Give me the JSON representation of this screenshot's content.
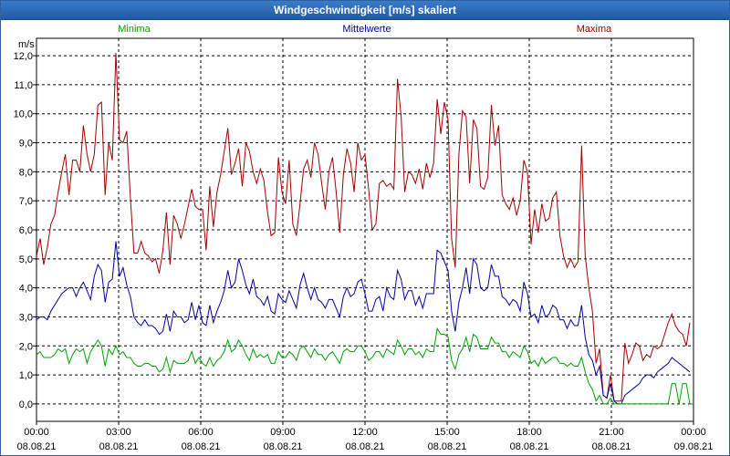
{
  "chart_data": {
    "type": "line",
    "title": "Windgeschwindigkeit [m/s] skaliert",
    "ylabel": "m/s",
    "ylim": [
      -0.6,
      12.6
    ],
    "yticks": [
      0,
      1,
      2,
      3,
      4,
      5,
      6,
      7,
      8,
      9,
      10,
      11,
      12
    ],
    "ytick_labels": [
      "0,0",
      "1,0",
      "2,0",
      "3,0",
      "4,0",
      "5,0",
      "6,0",
      "7,0",
      "8,0",
      "9,0",
      "10,0",
      "11,0",
      "12,0"
    ],
    "xlim_hours": [
      0,
      24
    ],
    "xticks": [
      {
        "h": 0,
        "time": "00:00",
        "date": "08.08.21"
      },
      {
        "h": 3,
        "time": "03:00",
        "date": "08.08.21"
      },
      {
        "h": 6,
        "time": "06:00",
        "date": "08.08.21"
      },
      {
        "h": 9,
        "time": "09:00",
        "date": "08.08.21"
      },
      {
        "h": 12,
        "time": "12:00",
        "date": "08.08.21"
      },
      {
        "h": 15,
        "time": "15:00",
        "date": "08.08.21"
      },
      {
        "h": 18,
        "time": "18:00",
        "date": "08.08.21"
      },
      {
        "h": 21,
        "time": "21:00",
        "date": "08.08.21"
      },
      {
        "h": 24,
        "time": "00:00",
        "date": "09.08.21"
      }
    ],
    "grid": true,
    "sample_interval_hours": 0.1667,
    "series": [
      {
        "name": "Maxima",
        "color": "#a00000",
        "values": [
          5.1,
          5.7,
          4.8,
          5.4,
          6.2,
          6.5,
          7.3,
          8.0,
          8.6,
          7.2,
          8.4,
          8.4,
          8.0,
          9.6,
          8.6,
          8.0,
          8.6,
          10.3,
          10.4,
          7.2,
          9.0,
          8.4,
          12.1,
          9.1,
          9.0,
          9.4,
          7.1,
          5.2,
          5.2,
          5.6,
          5.2,
          5.1,
          4.9,
          5.0,
          4.5,
          5.3,
          6.6,
          4.8,
          6.5,
          6.2,
          5.7,
          6.2,
          6.8,
          7.4,
          6.8,
          6.7,
          6.7,
          5.3,
          7.5,
          6.1,
          7.3,
          7.9,
          8.7,
          9.5,
          7.9,
          8.3,
          8.8,
          7.5,
          9.0,
          8.7,
          8.0,
          7.6,
          8.1,
          7.7,
          6.6,
          5.8,
          5.9,
          8.5,
          7.3,
          6.9,
          8.4,
          6.2,
          5.8,
          6.9,
          8.1,
          8.4,
          7.8,
          9.0,
          8.6,
          7.6,
          6.7,
          8.0,
          8.5,
          7.3,
          5.9,
          7.9,
          8.8,
          8.3,
          7.3,
          9.0,
          8.4,
          8.6,
          7.4,
          6.0,
          6.2,
          7.6,
          7.7,
          7.5,
          7.6,
          7.4,
          11.2,
          9.9,
          7.3,
          8.0,
          7.9,
          7.6,
          8.1,
          7.4,
          8.3,
          7.8,
          8.3,
          10.5,
          9.3,
          10.4,
          9.8,
          5.7,
          4.7,
          8.6,
          10.1,
          9.9,
          7.6,
          9.8,
          9.5,
          7.5,
          7.4,
          7.8,
          10.3,
          8.9,
          9.6,
          7.2,
          6.9,
          6.7,
          7.1,
          6.5,
          7.0,
          8.4,
          8.0,
          5.5,
          6.7,
          5.9,
          6.9,
          6.3,
          6.4,
          7.1,
          7.3,
          5.8,
          5.1,
          4.7,
          5.0,
          4.7,
          4.9,
          8.9,
          5.1,
          4.0,
          3.2,
          1.4,
          1.9,
          0.3,
          0.2,
          1.0,
          0.1,
          0.1,
          0.1,
          2.1,
          1.4,
          1.7,
          2.1,
          2.0,
          1.5,
          1.7,
          1.6,
          2.0,
          1.9,
          2.0,
          2.4,
          2.8,
          3.1,
          2.7,
          2.5,
          2.4,
          2.0,
          2.8
        ]
      },
      {
        "name": "Mittelwerte",
        "color": "#0000a0",
        "values": [
          2.9,
          3.0,
          3.0,
          2.9,
          3.2,
          3.4,
          3.6,
          3.8,
          3.9,
          4.0,
          4.0,
          3.7,
          4.0,
          4.2,
          3.9,
          3.6,
          4.4,
          4.8,
          4.6,
          3.5,
          4.2,
          4.3,
          5.6,
          4.4,
          4.7,
          4.1,
          3.7,
          3.0,
          2.8,
          2.7,
          2.9,
          2.7,
          2.7,
          2.6,
          2.4,
          2.5,
          3.1,
          2.5,
          3.2,
          3.0,
          3.0,
          2.8,
          2.9,
          3.5,
          2.9,
          3.4,
          2.8,
          2.7,
          3.4,
          2.8,
          3.2,
          3.5,
          3.9,
          4.6,
          4.0,
          4.2,
          5.0,
          4.6,
          4.1,
          3.8,
          4.3,
          3.7,
          3.6,
          3.4,
          3.7,
          3.2,
          3.1,
          3.8,
          3.6,
          3.5,
          3.9,
          3.6,
          3.3,
          4.1,
          4.5,
          4.0,
          3.6,
          4.0,
          3.6,
          3.5,
          3.3,
          3.6,
          3.6,
          3.3,
          3.0,
          3.7,
          4.0,
          3.7,
          3.8,
          4.2,
          4.3,
          3.8,
          3.2,
          3.2,
          3.6,
          3.7,
          3.2,
          4.0,
          3.7,
          3.6,
          4.6,
          4.3,
          3.6,
          3.9,
          3.9,
          3.4,
          3.7,
          3.3,
          3.8,
          3.8,
          3.8,
          5.3,
          5.2,
          4.9,
          4.6,
          3.2,
          2.5,
          3.5,
          4.0,
          4.7,
          3.8,
          5.0,
          4.8,
          4.0,
          3.9,
          4.0,
          4.8,
          4.4,
          4.4,
          3.7,
          3.6,
          3.4,
          3.6,
          3.5,
          3.2,
          4.2,
          3.8,
          3.0,
          3.1,
          2.8,
          3.4,
          3.0,
          3.1,
          3.4,
          3.3,
          2.9,
          2.9,
          2.6,
          2.9,
          2.7,
          2.7,
          3.4,
          2.3,
          1.7,
          1.5,
          1.0,
          1.3,
          0.3,
          0.2,
          0.7,
          0.1,
          0.0,
          0.0,
          0.3,
          0.4,
          0.5,
          0.6,
          0.7,
          0.9,
          1.0,
          1.0,
          0.9,
          1.1,
          1.2,
          1.3,
          1.4,
          1.6,
          1.5,
          1.4,
          1.3,
          1.2,
          1.1
        ]
      },
      {
        "name": "Minima",
        "color": "#00a000",
        "values": [
          1.7,
          1.8,
          1.6,
          1.6,
          1.6,
          1.7,
          1.9,
          1.8,
          1.9,
          1.4,
          1.7,
          1.9,
          1.8,
          1.9,
          1.4,
          1.8,
          2.0,
          2.2,
          2.0,
          1.3,
          1.9,
          1.7,
          2.0,
          1.7,
          1.8,
          1.6,
          1.6,
          1.4,
          1.3,
          1.3,
          1.4,
          1.4,
          1.3,
          1.3,
          1.1,
          1.2,
          1.6,
          1.1,
          1.5,
          1.4,
          1.4,
          1.4,
          1.5,
          1.8,
          1.4,
          1.6,
          1.4,
          1.3,
          1.6,
          1.3,
          1.5,
          1.6,
          1.8,
          2.2,
          1.8,
          1.9,
          2.2,
          2.0,
          1.7,
          1.5,
          1.9,
          1.6,
          1.7,
          1.6,
          1.7,
          1.4,
          1.4,
          1.8,
          1.6,
          1.6,
          1.8,
          1.7,
          1.5,
          1.9,
          2.0,
          1.8,
          1.6,
          1.9,
          1.7,
          1.7,
          1.5,
          1.7,
          1.8,
          1.6,
          1.4,
          1.8,
          1.9,
          1.8,
          1.8,
          2.0,
          2.0,
          1.8,
          1.5,
          1.6,
          1.8,
          1.8,
          1.6,
          1.9,
          1.8,
          1.7,
          2.2,
          2.0,
          1.7,
          1.9,
          1.9,
          1.7,
          1.8,
          1.6,
          1.9,
          1.8,
          1.8,
          2.6,
          2.4,
          2.4,
          2.3,
          1.5,
          1.2,
          1.7,
          1.9,
          2.3,
          1.8,
          2.4,
          2.3,
          1.9,
          1.9,
          1.9,
          2.3,
          2.1,
          2.1,
          1.8,
          1.8,
          1.6,
          1.8,
          1.7,
          1.6,
          2.0,
          1.8,
          1.4,
          1.5,
          1.3,
          1.6,
          1.4,
          1.5,
          1.6,
          1.6,
          1.4,
          1.4,
          1.3,
          1.4,
          1.3,
          1.3,
          1.6,
          1.1,
          0.7,
          0.5,
          0.1,
          0.3,
          0.0,
          0.0,
          0.2,
          0.0,
          0.0,
          0.0,
          0.0,
          0.0,
          0.0,
          0.0,
          0.0,
          0.0,
          0.0,
          0.0,
          0.0,
          0.0,
          0.0,
          0.0,
          0.0,
          0.7,
          0.7,
          0.0,
          0.7,
          0.7,
          0.0,
          0.0
        ]
      }
    ]
  }
}
